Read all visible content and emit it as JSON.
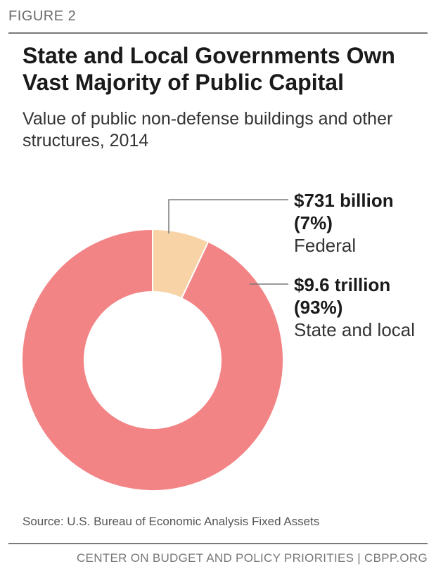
{
  "figure_label": "FIGURE 2",
  "title_line1": "State and Local Governments Own",
  "title_line2": "Vast Majority of Public Capital",
  "subtitle_line1": "Value of public non-defense buildings and other",
  "subtitle_line2": "structures, 2014",
  "source": "Source: U.S. Bureau of Economic Analysis Fixed Assets",
  "footer": "CENTER ON BUDGET AND POLICY PRIORITIES | CBPP.ORG",
  "chart_data": {
    "type": "pie",
    "subtype": "donut",
    "slices": [
      {
        "label": "Federal",
        "amount": "$731 billion",
        "pct_label": "(7%)",
        "value": 7,
        "color": "#f7d3a6"
      },
      {
        "label": "State and local",
        "amount": "$9.6 trillion",
        "pct_label": "(93%)",
        "value": 93,
        "color": "#f28486"
      }
    ]
  }
}
